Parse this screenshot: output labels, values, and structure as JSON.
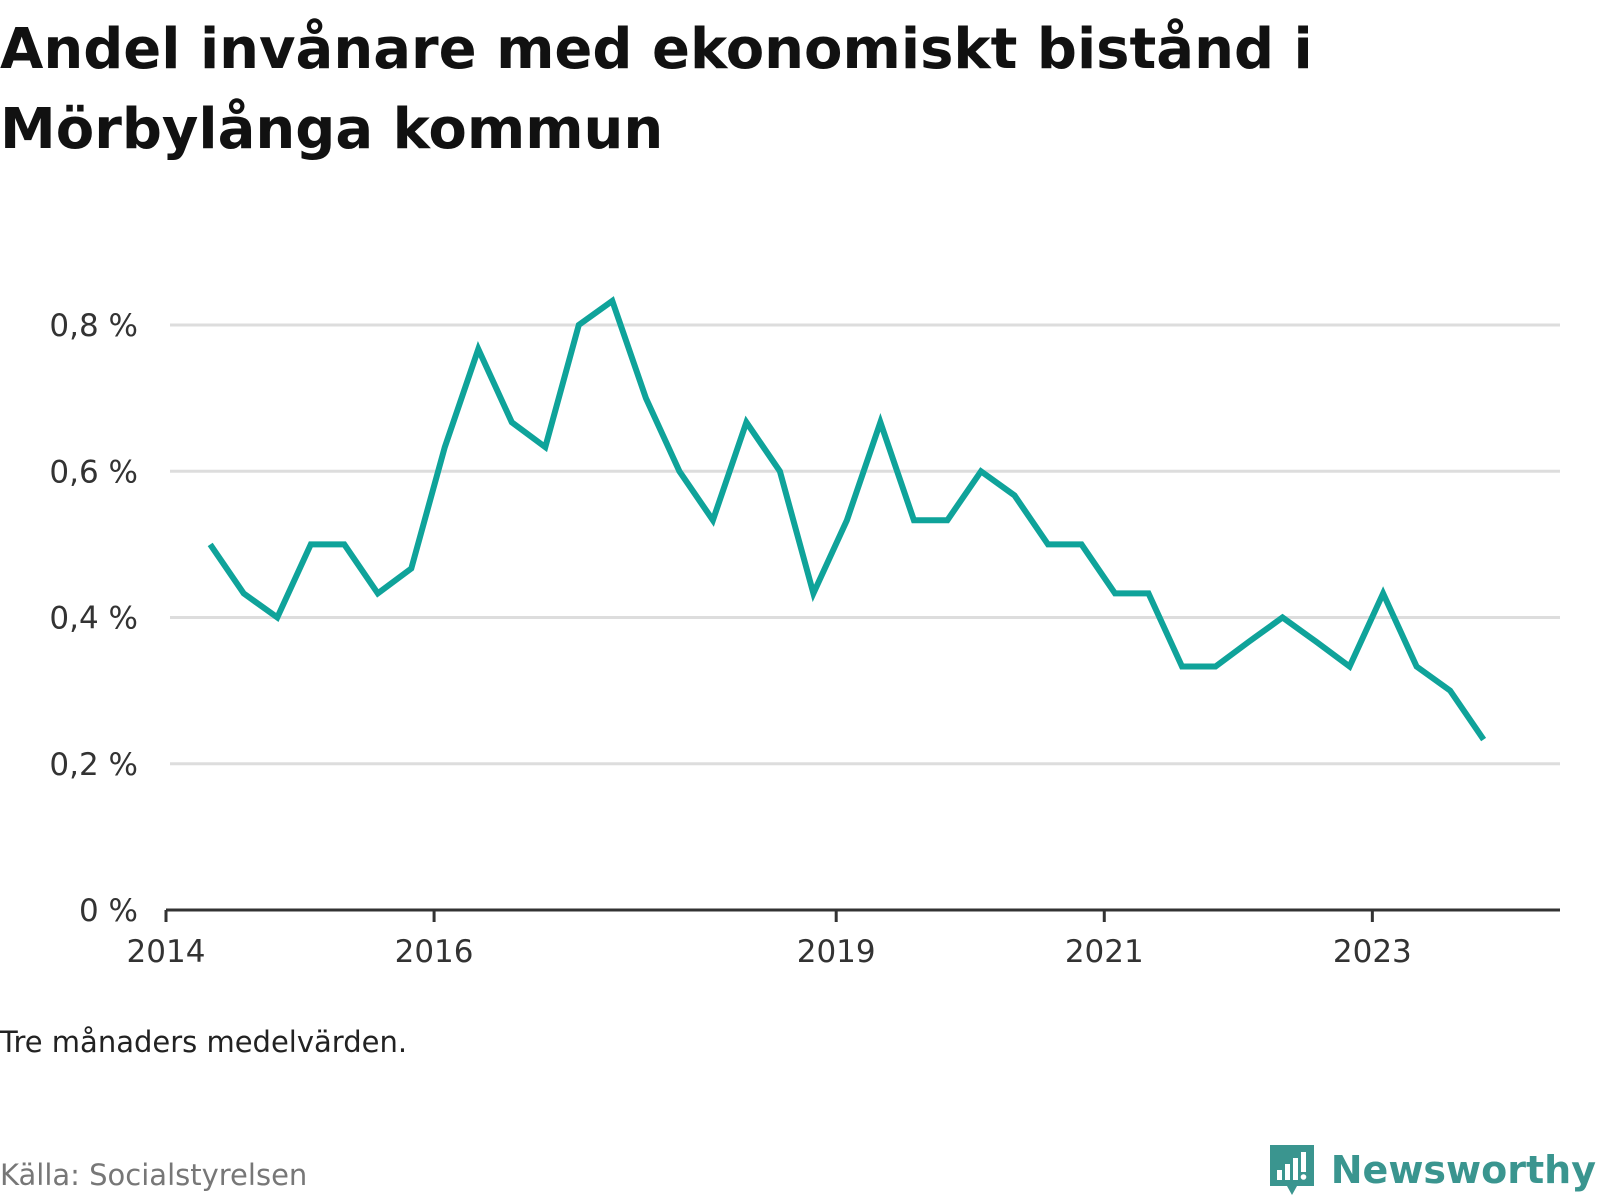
{
  "title": "Andel invånare med ekonomiskt bistånd i Mörbylånga kommun",
  "note": "Tre månaders medelvärden.",
  "source": "Källa: Socialstyrelsen",
  "brand": {
    "name": "Newsworthy",
    "icon": "bar-chart-speech-bubble-icon",
    "color": "#3a958f"
  },
  "colors": {
    "line": "#0fa39a",
    "grid": "#dddddd",
    "axis": "#333333"
  },
  "chart_data": {
    "type": "line",
    "title": "Andel invånare med ekonomiskt bistånd i Mörbylånga kommun",
    "xlabel": "",
    "ylabel": "",
    "ylim": [
      0,
      0.9
    ],
    "xlim": [
      2014.0,
      2024.4
    ],
    "grid": true,
    "legend": "none",
    "x_tick_values": [
      2014,
      2016,
      2019,
      2021,
      2023
    ],
    "x_tick_labels": [
      "2014",
      "2016",
      "2019",
      "2021",
      "2023"
    ],
    "y_tick_values": [
      0,
      0.2,
      0.4,
      0.6,
      0.8
    ],
    "y_tick_labels": [
      "0 %",
      "0,2 %",
      "0,4 %",
      "0,6 %",
      "0,8 %"
    ],
    "series": [
      {
        "x": [
          2014.33,
          2014.58,
          2014.83,
          2015.08,
          2015.33,
          2015.58,
          2015.83,
          2016.08,
          2016.33,
          2016.58,
          2016.83,
          2017.08,
          2017.33,
          2017.58,
          2017.83,
          2018.08,
          2018.33,
          2018.58,
          2018.83,
          2019.08,
          2019.33,
          2019.58,
          2019.83,
          2020.08,
          2020.33,
          2020.58,
          2020.83,
          2021.08,
          2021.33,
          2021.58,
          2021.83,
          2022.08,
          2022.33,
          2022.58,
          2022.83,
          2023.08,
          2023.33,
          2023.58,
          2023.83
        ],
        "values": [
          0.5,
          0.433,
          0.4,
          0.5,
          0.5,
          0.433,
          0.467,
          0.633,
          0.767,
          0.667,
          0.633,
          0.8,
          0.833,
          0.7,
          0.6,
          0.533,
          0.667,
          0.6,
          0.433,
          0.533,
          0.667,
          0.533,
          0.533,
          0.6,
          0.567,
          0.5,
          0.5,
          0.433,
          0.433,
          0.333,
          0.333,
          0.367,
          0.4,
          0.367,
          0.333,
          0.433,
          0.333,
          0.3,
          0.233
        ]
      }
    ]
  }
}
